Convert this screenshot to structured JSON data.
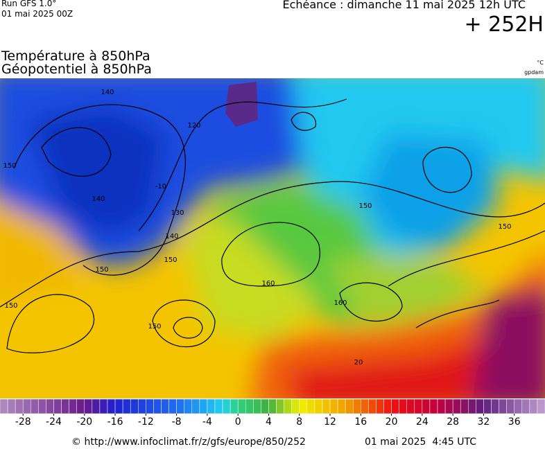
{
  "header": {
    "run": "Run GFS 1.0°",
    "run_date": "01 mai 2025 00Z",
    "forecast": "Echéance : dimanche 11 mai 2025 12h UTC",
    "lead": "+ 252H"
  },
  "titles": {
    "line1": "Température à 850hPa",
    "line2": "Géopotentiel à 850hPa",
    "unit1": "°C",
    "unit2": "gpdam"
  },
  "contour_labels": [
    "140",
    "120",
    "-10",
    "130",
    "140",
    "140",
    "150",
    "150",
    "150",
    "160",
    "150",
    "150",
    "150",
    "150",
    "160",
    "20"
  ],
  "colorbar": {
    "lim": [
      -31,
      40
    ],
    "ticks": [
      -28,
      -24,
      -20,
      -16,
      -12,
      -8,
      -4,
      0,
      4,
      8,
      12,
      16,
      20,
      24,
      28,
      32,
      36
    ]
  },
  "footer": {
    "source": "© http://www.infoclimat.fr/z/gfs/europe/850/252",
    "generated": "01 mai 2025  4:45 UTC"
  }
}
